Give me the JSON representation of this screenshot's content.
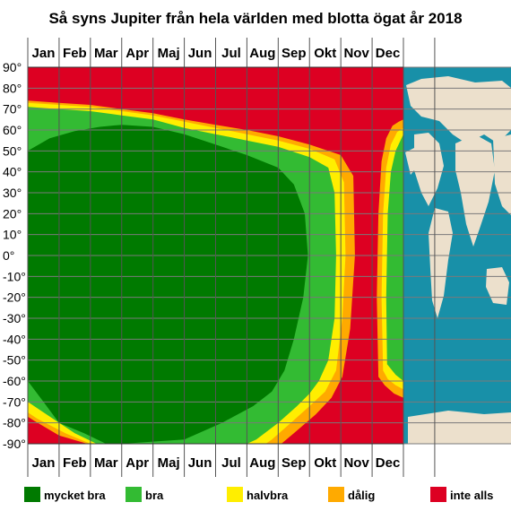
{
  "chart_data": {
    "type": "heatmap",
    "title": "Så syns Jupiter från hela världen med blotta ögat år 2018",
    "x_categories": [
      "Jan",
      "Feb",
      "Mar",
      "Apr",
      "Maj",
      "Jun",
      "Jul",
      "Aug",
      "Sep",
      "Okt",
      "Nov",
      "Dec"
    ],
    "y_tick_labels": [
      "90°",
      "80°",
      "70°",
      "60°",
      "50°",
      "40°",
      "30°",
      "20°",
      "10°",
      "0°",
      "-10°",
      "-20°",
      "-30°",
      "-40°",
      "-50°",
      "-60°",
      "-70°",
      "-80°",
      "-90°"
    ],
    "y_range": [
      -90,
      90
    ],
    "x_range_months": [
      0,
      12
    ],
    "grid": true,
    "legend_position": "bottom",
    "categories": [
      {
        "key": "mycket_bra",
        "label": "mycket bra",
        "color": "#007a00"
      },
      {
        "key": "bra",
        "label": "bra",
        "color": "#33bb33"
      },
      {
        "key": "halvbra",
        "label": "halvbra",
        "color": "#ffee00"
      },
      {
        "key": "dalig",
        "label": "dålig",
        "color": "#ffaa00"
      },
      {
        "key": "inte_alls",
        "label": "inte alls",
        "color": "#dd0022"
      }
    ],
    "visibility_bands": {
      "description": "boundaries of each visibility class per month (time in months from start of year, latitude in degrees)",
      "mycket_bra": [
        [
          0,
          -60
        ],
        [
          0,
          50
        ],
        [
          0.7,
          56
        ],
        [
          1.5,
          59.5
        ],
        [
          2.3,
          61.5
        ],
        [
          3,
          62.5
        ],
        [
          4,
          61.5
        ],
        [
          5,
          58
        ],
        [
          6,
          53
        ],
        [
          7,
          48
        ],
        [
          8,
          42
        ],
        [
          8.5,
          34
        ],
        [
          8.85,
          20
        ],
        [
          8.95,
          0
        ],
        [
          8.8,
          -20
        ],
        [
          8.5,
          -40
        ],
        [
          8.2,
          -55
        ],
        [
          7.8,
          -65
        ],
        [
          7.2,
          -72
        ],
        [
          6.2,
          -80
        ],
        [
          5,
          -88
        ],
        [
          3,
          -90
        ],
        [
          2.5,
          -90
        ],
        [
          1.8,
          -85
        ],
        [
          1,
          -80
        ],
        [
          0.5,
          -70
        ]
      ],
      "bra": [
        [
          0,
          -70
        ],
        [
          0,
          71
        ],
        [
          1,
          70
        ],
        [
          2,
          69
        ],
        [
          3,
          67
        ],
        [
          4,
          65
        ],
        [
          5,
          61
        ],
        [
          6,
          58
        ],
        [
          7,
          55
        ],
        [
          8,
          52
        ],
        [
          9,
          47
        ],
        [
          9.6,
          42
        ],
        [
          9.8,
          30
        ],
        [
          9.85,
          0
        ],
        [
          9.8,
          -30
        ],
        [
          9.6,
          -50
        ],
        [
          9.3,
          -60
        ],
        [
          9,
          -66
        ],
        [
          8.6,
          -72
        ],
        [
          8,
          -80
        ],
        [
          7.3,
          -88
        ],
        [
          7,
          -90
        ],
        [
          2.2,
          -90
        ],
        [
          1.5,
          -85
        ],
        [
          0.5,
          -75
        ]
      ],
      "halvbra": [
        [
          0,
          -75
        ],
        [
          0,
          73
        ],
        [
          1,
          72
        ],
        [
          2,
          71
        ],
        [
          3,
          69
        ],
        [
          4,
          67
        ],
        [
          5,
          64
        ],
        [
          6,
          61
        ],
        [
          7,
          58
        ],
        [
          8,
          55
        ],
        [
          9,
          51
        ],
        [
          9.8,
          46
        ],
        [
          10.1,
          35
        ],
        [
          10.15,
          0
        ],
        [
          10.05,
          -30
        ],
        [
          9.85,
          -55
        ],
        [
          9.5,
          -65
        ],
        [
          9,
          -72
        ],
        [
          8.4,
          -80
        ],
        [
          7.8,
          -88
        ],
        [
          7.6,
          -90
        ],
        [
          2,
          -90
        ],
        [
          1.2,
          -85
        ],
        [
          0.3,
          -78
        ]
      ],
      "dalig": [
        [
          0,
          -77
        ],
        [
          0,
          74
        ],
        [
          1,
          73
        ],
        [
          2,
          72
        ],
        [
          3,
          70
        ],
        [
          4,
          68
        ],
        [
          5,
          65
        ],
        [
          6,
          62.5
        ],
        [
          7,
          60
        ],
        [
          8,
          57
        ],
        [
          9,
          53
        ],
        [
          10,
          48
        ],
        [
          10.4,
          38
        ],
        [
          10.45,
          0
        ],
        [
          10.3,
          -35
        ],
        [
          10.05,
          -58
        ],
        [
          9.7,
          -68
        ],
        [
          9.2,
          -76
        ],
        [
          8.5,
          -85
        ],
        [
          8.1,
          -90
        ],
        [
          1.9,
          -90
        ],
        [
          1.0,
          -86
        ],
        [
          0.2,
          -79
        ]
      ],
      "bra_december": [
        [
          11.48,
          -52
        ],
        [
          11.45,
          -20
        ],
        [
          11.5,
          20
        ],
        [
          11.6,
          40
        ],
        [
          11.75,
          50
        ],
        [
          12,
          58
        ],
        [
          12,
          -60
        ],
        [
          11.75,
          -57
        ]
      ],
      "halvbra_december": [
        [
          11.35,
          -55
        ],
        [
          11.3,
          -20
        ],
        [
          11.35,
          20
        ],
        [
          11.45,
          42
        ],
        [
          11.6,
          53
        ],
        [
          11.8,
          59
        ],
        [
          12,
          61
        ],
        [
          12,
          -64
        ],
        [
          11.75,
          -62
        ],
        [
          11.5,
          -59
        ]
      ],
      "dalig_december": [
        [
          11.2,
          -58
        ],
        [
          11.15,
          -20
        ],
        [
          11.2,
          20
        ],
        [
          11.3,
          45
        ],
        [
          11.45,
          56
        ],
        [
          11.65,
          62
        ],
        [
          11.85,
          64
        ],
        [
          12,
          65
        ],
        [
          12,
          -68
        ],
        [
          11.7,
          -66
        ],
        [
          11.4,
          -62
        ]
      ]
    }
  },
  "map_panel": {
    "ocean_color": "#1890a8",
    "land_color": "#ece0cc"
  }
}
